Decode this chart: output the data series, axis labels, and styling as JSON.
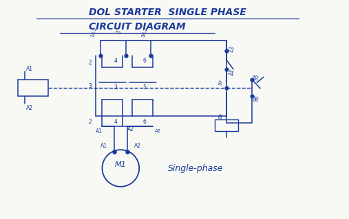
{
  "title_line1": "DOL STARTER  SINGLE PHASE",
  "title_line2": "CIRCUIT DIAGRAM",
  "bg_color": "#f8f8f4",
  "ink_color": "#1a3a9c",
  "single_phase_text": "Single-phase",
  "fig_width": 5.07,
  "fig_height": 3.19,
  "dpi": 100
}
